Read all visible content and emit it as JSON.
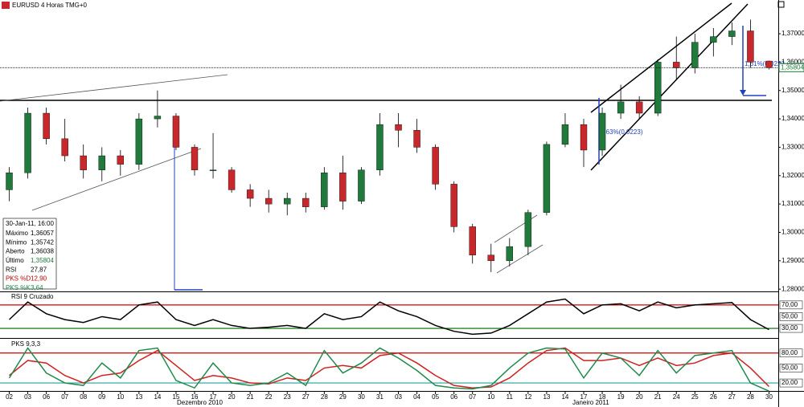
{
  "header": {
    "title": "EURUSD 4 Horas TMG+0"
  },
  "months": [
    "Dezembro 2010",
    "Janeiro 2011"
  ],
  "info_box": {
    "date": "30-Jan-11, 16:00",
    "rows": [
      [
        "Máximo",
        "1,36057"
      ],
      [
        "Mínimo",
        "1,35742"
      ],
      [
        "Aberto",
        "1,36038"
      ],
      [
        "Último",
        "1,35804"
      ],
      [
        "RSI",
        "27,87"
      ],
      [
        "PKS %D",
        "12,90"
      ],
      [
        "PKS %K",
        "3,64"
      ]
    ]
  },
  "chart_data": [
    {
      "type": "candlestick",
      "categories": [
        "02",
        "03",
        "06",
        "07",
        "08",
        "09",
        "10",
        "13",
        "14",
        "15",
        "16",
        "17",
        "20",
        "21",
        "22",
        "23",
        "27",
        "28",
        "29",
        "30",
        "31",
        "03",
        "04",
        "05",
        "06",
        "07",
        "10",
        "11",
        "12",
        "13",
        "14",
        "17",
        "18",
        "19",
        "20",
        "21",
        "24",
        "25",
        "26",
        "27",
        "28",
        "30"
      ],
      "open": [
        1.315,
        1.321,
        1.342,
        1.333,
        1.327,
        1.322,
        1.327,
        1.324,
        1.34,
        1.341,
        1.33,
        1.322,
        1.322,
        1.315,
        1.312,
        1.31,
        1.312,
        1.309,
        1.321,
        1.311,
        1.322,
        1.338,
        1.336,
        1.33,
        1.317,
        1.302,
        1.292,
        1.29,
        1.295,
        1.307,
        1.331,
        1.338,
        1.329,
        1.342,
        1.346,
        1.342,
        1.36,
        1.358,
        1.367,
        1.369,
        1.371,
        1.36038
      ],
      "high": [
        1.323,
        1.344,
        1.344,
        1.34,
        1.331,
        1.33,
        1.329,
        1.342,
        1.35,
        1.342,
        1.331,
        1.335,
        1.323,
        1.317,
        1.315,
        1.314,
        1.314,
        1.323,
        1.327,
        1.323,
        1.342,
        1.342,
        1.34,
        1.331,
        1.318,
        1.303,
        1.296,
        1.298,
        1.308,
        1.332,
        1.342,
        1.34,
        1.344,
        1.352,
        1.348,
        1.361,
        1.369,
        1.37,
        1.372,
        1.374,
        1.375,
        1.36057
      ],
      "low": [
        1.311,
        1.319,
        1.331,
        1.325,
        1.319,
        1.318,
        1.32,
        1.322,
        1.337,
        1.329,
        1.32,
        1.319,
        1.314,
        1.309,
        1.307,
        1.306,
        1.307,
        1.308,
        1.308,
        1.31,
        1.32,
        1.33,
        1.328,
        1.315,
        1.3,
        1.289,
        1.286,
        1.288,
        1.292,
        1.306,
        1.33,
        1.323,
        1.327,
        1.34,
        1.34,
        1.341,
        1.354,
        1.356,
        1.362,
        1.366,
        1.358,
        1.35742
      ],
      "close": [
        1.321,
        1.342,
        1.333,
        1.327,
        1.322,
        1.327,
        1.324,
        1.34,
        1.341,
        1.33,
        1.322,
        1.322,
        1.315,
        1.312,
        1.31,
        1.312,
        1.309,
        1.321,
        1.311,
        1.322,
        1.338,
        1.336,
        1.33,
        1.317,
        1.302,
        1.292,
        1.29,
        1.295,
        1.307,
        1.331,
        1.338,
        1.329,
        1.342,
        1.346,
        1.342,
        1.36,
        1.358,
        1.367,
        1.369,
        1.371,
        1.36,
        1.35804
      ],
      "up_color": "#1f7a3c",
      "down_color": "#c8282c",
      "ylim": [
        1.2792,
        1.3785
      ],
      "yticks": [
        {
          "value": 1.28,
          "label": "1,28000"
        },
        {
          "value": 1.29,
          "label": "1,29000"
        },
        {
          "value": 1.3,
          "label": "1,30000"
        },
        {
          "value": 1.31,
          "label": "1,31000"
        },
        {
          "value": 1.32,
          "label": "1,32000"
        },
        {
          "value": 1.33,
          "label": "1,33000"
        },
        {
          "value": 1.34,
          "label": "1,34000"
        },
        {
          "value": 1.35,
          "label": "1,35000"
        },
        {
          "value": 1.36,
          "label": "1,36000"
        },
        {
          "value": 1.37,
          "label": "1,37000"
        }
      ],
      "last_label": "1,35804",
      "annotations": [
        "1,61%(0,0220",
        "1,63%(0,0223)"
      ]
    },
    {
      "type": "line",
      "title": "RSI 9 Cruzado",
      "series": [
        {
          "color": "#000000",
          "values": [
            45,
            75,
            55,
            45,
            40,
            50,
            45,
            70,
            75,
            45,
            35,
            45,
            35,
            30,
            32,
            35,
            30,
            55,
            45,
            50,
            75,
            60,
            50,
            35,
            25,
            20,
            22,
            35,
            55,
            75,
            80,
            55,
            70,
            72,
            60,
            75,
            65,
            70,
            72,
            74,
            45,
            27.87
          ]
        }
      ],
      "ylim": [
        15,
        89
      ],
      "yticks": [
        {
          "value": 30,
          "label": "30,00"
        },
        {
          "value": 50,
          "label": "50,00"
        },
        {
          "value": 70,
          "label": "70,00"
        }
      ],
      "grid_colors": [
        "#006400",
        "#ffffff",
        "#d00000"
      ]
    },
    {
      "type": "line",
      "title": "PKS 9,3,3",
      "series": [
        {
          "color": "#d02020",
          "values": [
            35,
            65,
            60,
            35,
            20,
            35,
            40,
            65,
            85,
            55,
            25,
            35,
            30,
            20,
            18,
            30,
            25,
            50,
            55,
            50,
            75,
            80,
            60,
            35,
            15,
            10,
            12,
            30,
            60,
            85,
            90,
            65,
            65,
            70,
            55,
            70,
            55,
            60,
            75,
            80,
            50,
            12.9
          ]
        },
        {
          "color": "#1f8a4c",
          "values": [
            30,
            90,
            40,
            20,
            15,
            60,
            30,
            85,
            90,
            25,
            10,
            60,
            20,
            15,
            20,
            40,
            15,
            85,
            40,
            60,
            90,
            70,
            45,
            15,
            10,
            8,
            15,
            50,
            80,
            90,
            88,
            30,
            80,
            70,
            35,
            85,
            40,
            75,
            80,
            85,
            20,
            3.64
          ]
        }
      ],
      "ylim": [
        4,
        107
      ],
      "yticks": [
        {
          "value": 20,
          "label": "20,00"
        },
        {
          "value": 50,
          "label": "50,00"
        },
        {
          "value": 80,
          "label": "80,00"
        }
      ],
      "grid_colors": [
        "#20a0a0",
        "#ffffff",
        "#d00000"
      ]
    }
  ]
}
